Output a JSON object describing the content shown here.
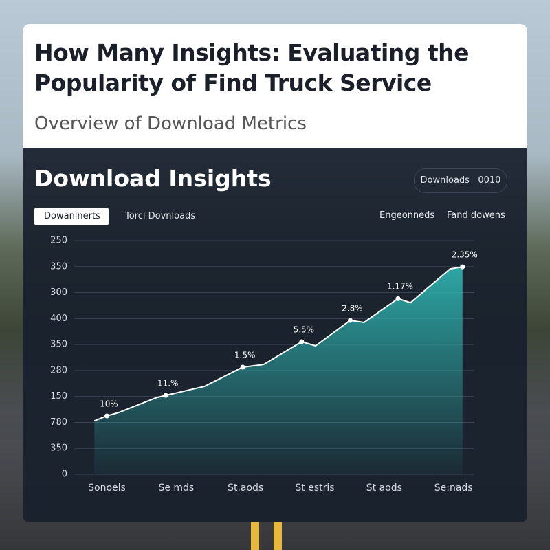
{
  "header": {
    "title": "How Many Insights: Evaluating the Popularity of Find Truck Service",
    "subtitle": "Overview of Download Metrics"
  },
  "panel": {
    "title": "Download Insights",
    "badge": [
      "Downloads",
      "0010"
    ],
    "tabs": [
      "Dowanlnerts",
      "Torcl Dovnloads"
    ],
    "legend": [
      "Engeonneds",
      "Fand dowens"
    ]
  },
  "chart_data": {
    "type": "area",
    "color": "#2fb5b2",
    "line_color": "#ffffff",
    "grid": true,
    "x": [
      -0.18,
      0,
      0.17,
      0.72,
      0.85,
      1.41,
      1.96,
      2.26,
      2.81,
      3.01,
      3.51,
      3.71,
      4.2,
      4.38,
      4.95,
      5.13
    ],
    "values": [
      2.06,
      2.25,
      2.38,
      2.96,
      3.04,
      3.39,
      4.13,
      4.23,
      5.11,
      4.95,
      5.93,
      5.85,
      6.77,
      6.61,
      7.91,
      7.99
    ],
    "value_labels": [
      null,
      "10%",
      null,
      null,
      "11.%",
      null,
      "1.5%",
      null,
      "5.5%",
      null,
      "2.8%",
      null,
      "1.17%",
      null,
      null,
      "2.35%"
    ],
    "xlim": [
      -0.6,
      5.4
    ],
    "xticks": [
      {
        "value": 0,
        "label": "Sonoels"
      },
      {
        "value": 1,
        "label": "Se mds"
      },
      {
        "value": 2,
        "label": "St.aods"
      },
      {
        "value": 3,
        "label": "St estris"
      },
      {
        "value": 4,
        "label": "St aods"
      },
      {
        "value": 5,
        "label": "Se:nads"
      }
    ],
    "ylim": [
      0,
      9
    ],
    "yticks": [
      0,
      {
        "value": 1,
        "label": "350"
      },
      {
        "value": 2,
        "label": "780"
      },
      {
        "value": 3,
        "label": "150"
      },
      {
        "value": 4,
        "label": "280"
      },
      {
        "value": 5,
        "label": "350"
      },
      {
        "value": 6,
        "label": "400"
      },
      {
        "value": 7,
        "label": "300"
      },
      {
        "value": 8,
        "label": "350"
      },
      {
        "value": 9,
        "label": "250"
      }
    ]
  }
}
